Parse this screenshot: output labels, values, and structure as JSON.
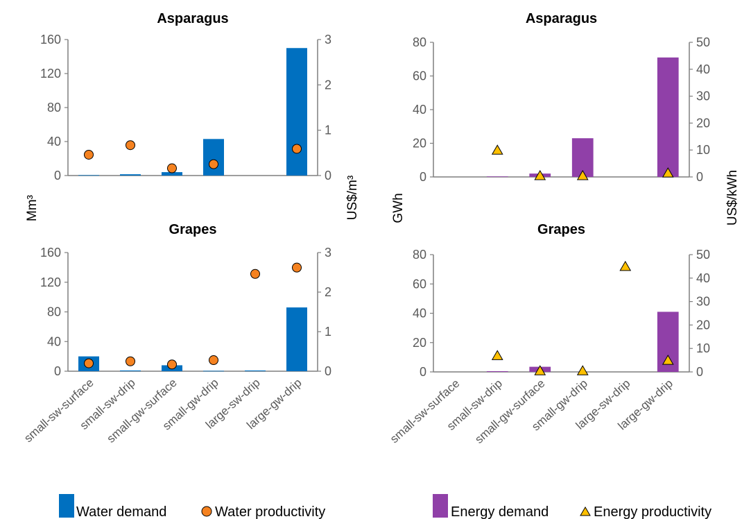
{
  "categories": [
    "small-sw-surface",
    "small-sw-drip",
    "small-gw-surface",
    "small-gw-drip",
    "large-sw-drip",
    "large-gw-drip"
  ],
  "colors": {
    "water_bar": "#0070C0",
    "water_marker": "#F58220",
    "energy_bar": "#9040A8",
    "energy_marker": "#FFC000",
    "axis": "#7F7F7F"
  },
  "axis_labels": {
    "water_left": "Mm³",
    "water_right": "US$/m³",
    "energy_left": "GWh",
    "energy_right": "US$/kWh"
  },
  "legend": {
    "water_demand": "Water demand",
    "water_productivity": "Water productivity",
    "energy_demand": "Energy demand",
    "energy_productivity": "Energy productivity"
  },
  "chart_data": [
    {
      "type": "bar",
      "title": "Asparagus",
      "categories": [
        "small-sw-surface",
        "small-sw-drip",
        "small-gw-surface",
        "small-gw-drip",
        "large-sw-drip",
        "large-gw-drip"
      ],
      "ylim": [
        0,
        160
      ],
      "yticks": [
        0,
        40,
        80,
        120,
        160
      ],
      "y2lim": [
        0,
        3
      ],
      "y2ticks": [
        0,
        1,
        2,
        3
      ],
      "series": [
        {
          "name": "Water demand",
          "kind": "bar",
          "axis": "left",
          "values": [
            0.5,
            1.5,
            4,
            43,
            null,
            150
          ]
        },
        {
          "name": "Water productivity",
          "kind": "marker",
          "axis": "right",
          "values": [
            0.46,
            0.67,
            0.16,
            0.25,
            null,
            0.59
          ]
        }
      ]
    },
    {
      "type": "bar",
      "title": "Asparagus",
      "categories": [
        "small-sw-surface",
        "small-sw-drip",
        "small-gw-surface",
        "small-gw-drip",
        "large-sw-drip",
        "large-gw-drip"
      ],
      "ylim": [
        0,
        80
      ],
      "yticks": [
        0,
        20,
        40,
        60,
        80
      ],
      "y2lim": [
        0,
        50
      ],
      "y2ticks": [
        0,
        10,
        20,
        30,
        40,
        50
      ],
      "series": [
        {
          "name": "Energy demand",
          "kind": "bar",
          "axis": "left",
          "values": [
            null,
            0.3,
            2,
            23,
            null,
            71
          ]
        },
        {
          "name": "Energy productivity",
          "kind": "marker",
          "axis": "right",
          "values": [
            null,
            10,
            0.5,
            0.5,
            null,
            1.5
          ]
        }
      ]
    },
    {
      "type": "bar",
      "title": "Grapes",
      "categories": [
        "small-sw-surface",
        "small-sw-drip",
        "small-gw-surface",
        "small-gw-drip",
        "large-sw-drip",
        "large-gw-drip"
      ],
      "ylim": [
        0,
        160
      ],
      "yticks": [
        0,
        40,
        80,
        120,
        160
      ],
      "y2lim": [
        0,
        3
      ],
      "y2ticks": [
        0,
        1,
        2,
        3
      ],
      "series": [
        {
          "name": "Water demand",
          "kind": "bar",
          "axis": "left",
          "values": [
            20,
            1,
            8,
            0.5,
            1,
            86
          ]
        },
        {
          "name": "Water productivity",
          "kind": "marker",
          "axis": "right",
          "values": [
            0.2,
            0.25,
            0.17,
            0.28,
            2.46,
            2.62
          ]
        }
      ]
    },
    {
      "type": "bar",
      "title": "Grapes",
      "categories": [
        "small-sw-surface",
        "small-sw-drip",
        "small-gw-surface",
        "small-gw-drip",
        "large-sw-drip",
        "large-gw-drip"
      ],
      "ylim": [
        0,
        80
      ],
      "yticks": [
        0,
        20,
        40,
        60,
        80
      ],
      "y2lim": [
        0,
        50
      ],
      "y2ticks": [
        0,
        10,
        20,
        30,
        40,
        50
      ],
      "series": [
        {
          "name": "Energy demand",
          "kind": "bar",
          "axis": "left",
          "values": [
            null,
            0.5,
            3.5,
            null,
            null,
            41
          ]
        },
        {
          "name": "Energy productivity",
          "kind": "marker",
          "axis": "right",
          "values": [
            null,
            7,
            0.5,
            0.5,
            45,
            5
          ]
        }
      ]
    }
  ]
}
